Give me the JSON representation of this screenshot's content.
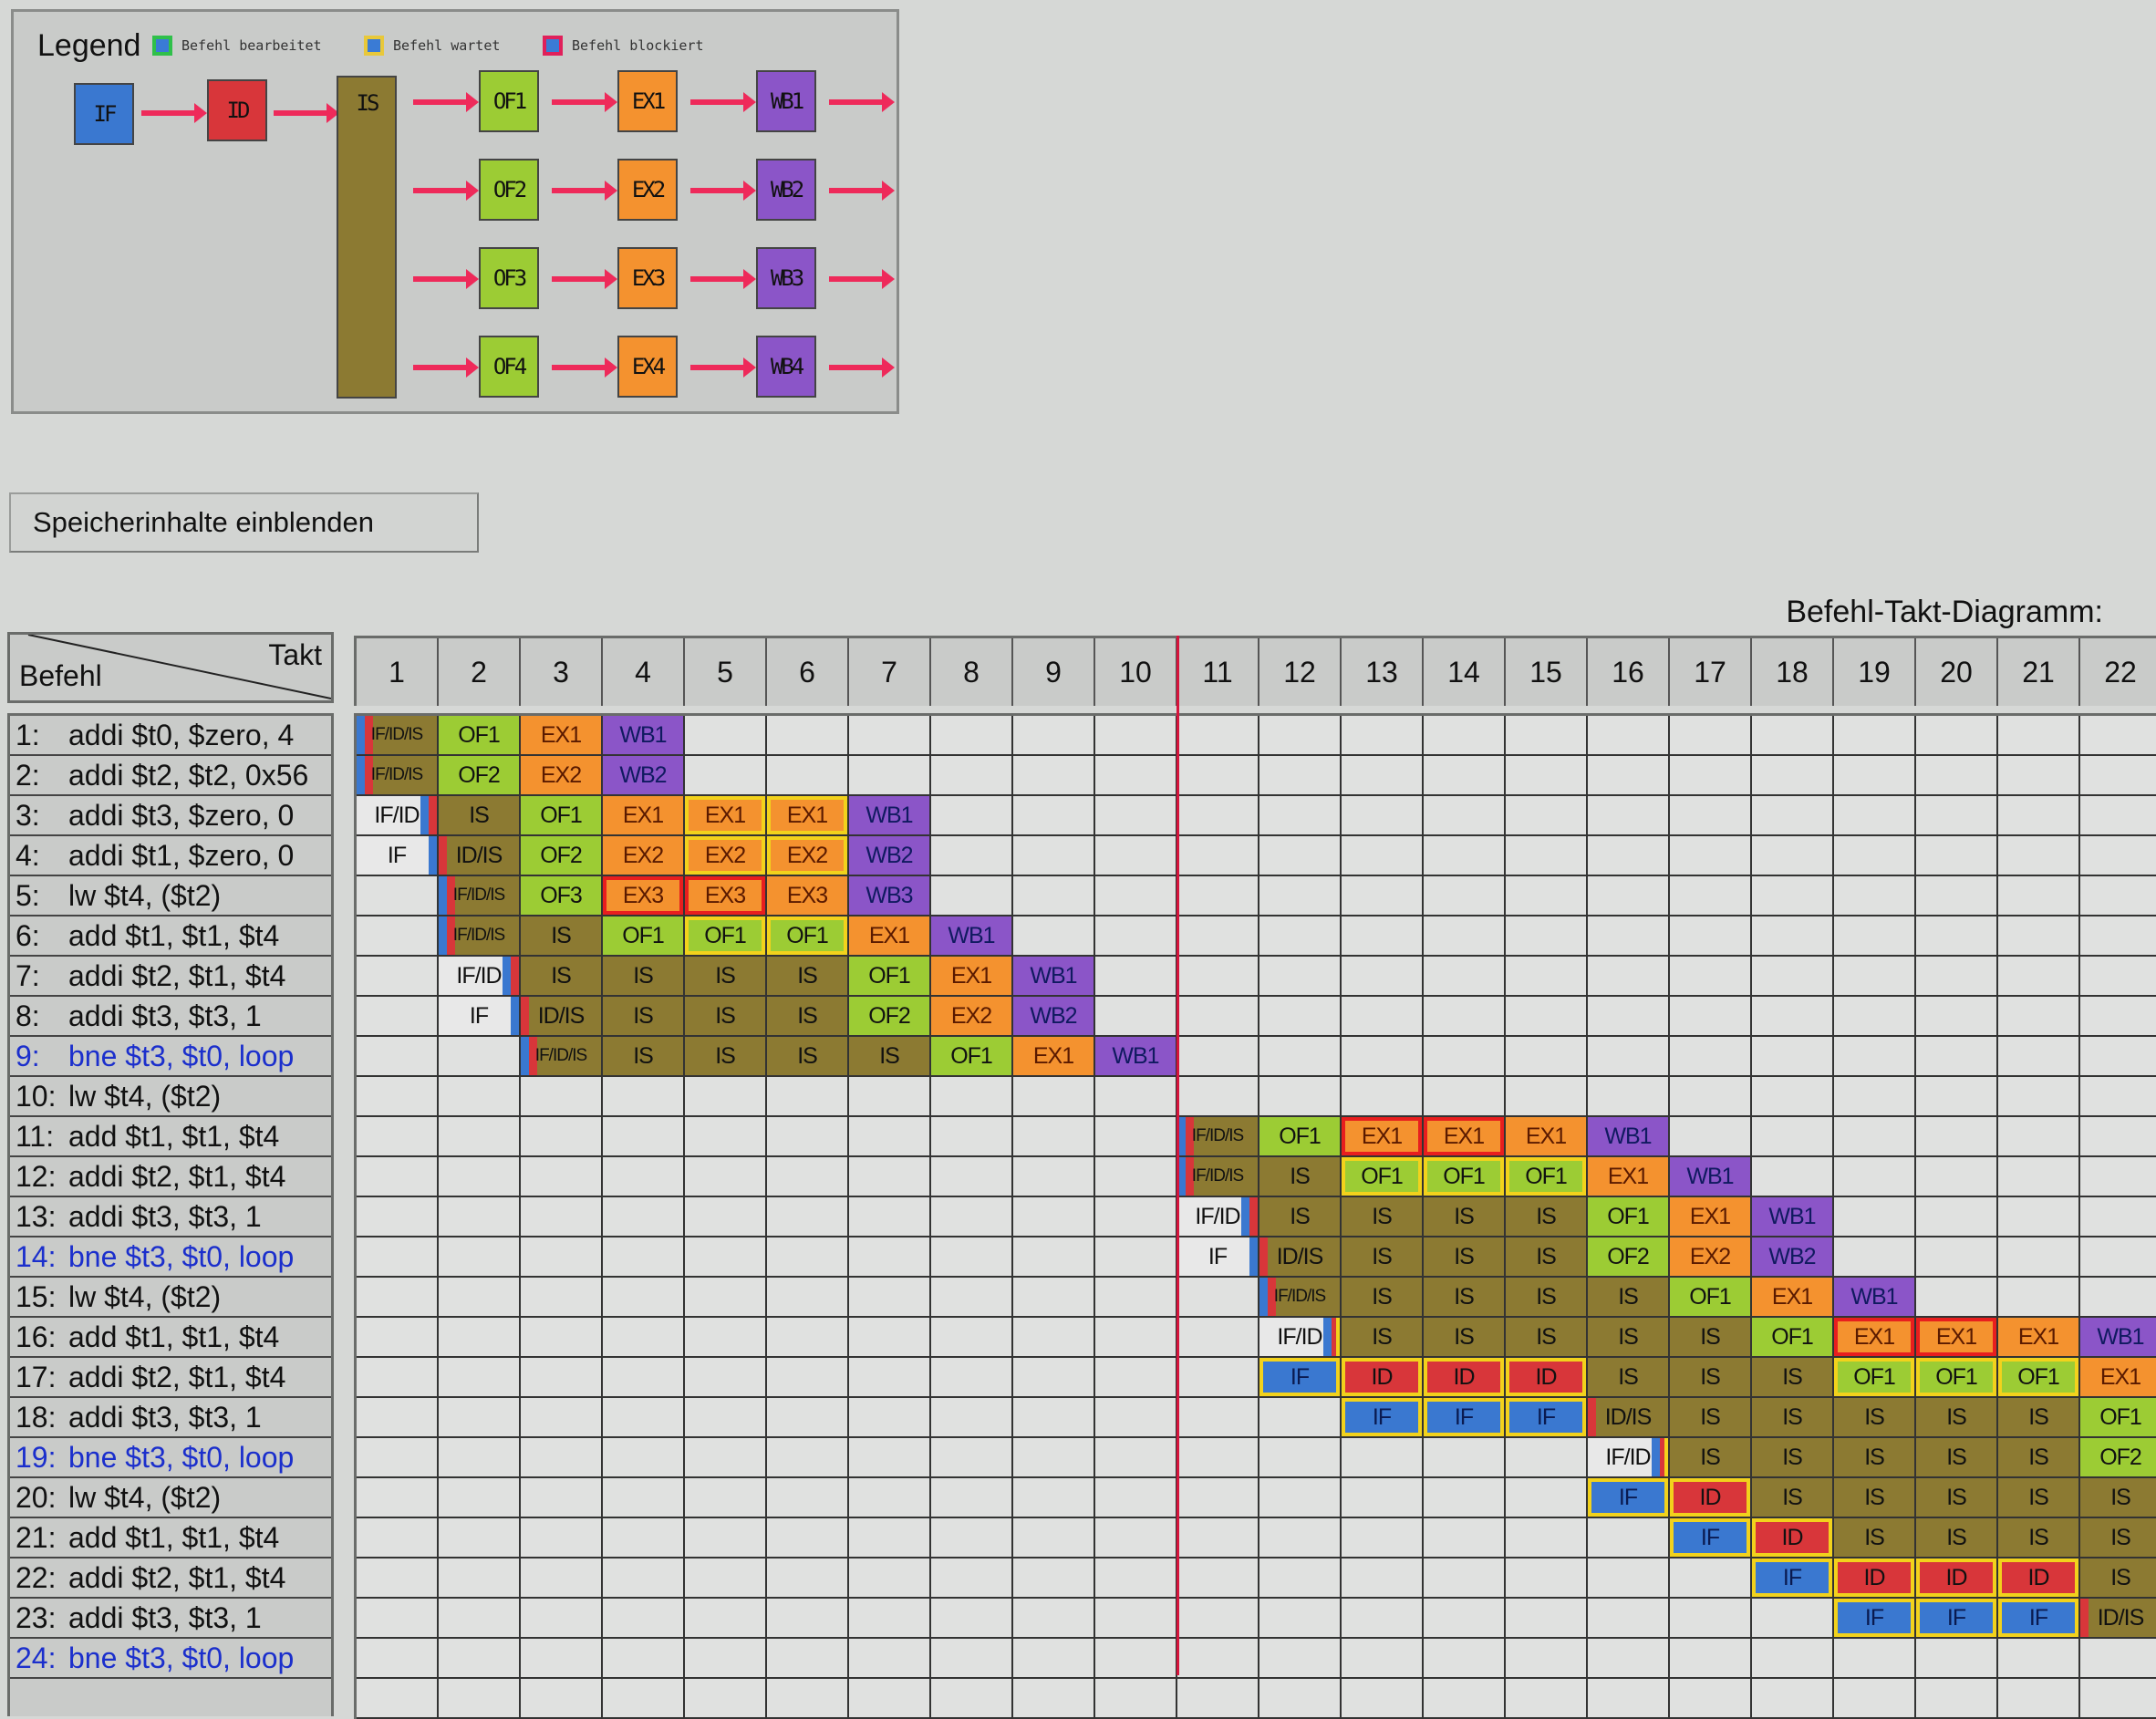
{
  "legend": {
    "title": "Legend",
    "items": [
      {
        "label": "Befehl bearbeitet",
        "border": "#2fc04a"
      },
      {
        "label": "Befehl wartet",
        "border": "#e8c83a"
      },
      {
        "label": "Befehl blockiert",
        "border": "#e0205a"
      }
    ],
    "pipeline": {
      "fetch": "IF",
      "decode": "ID",
      "issue": "IS",
      "operand_fetch": [
        "OF1",
        "OF2",
        "OF3",
        "OF4"
      ],
      "execute": [
        "EX1",
        "EX2",
        "EX3",
        "EX4"
      ],
      "write_back": [
        "WB1",
        "WB2",
        "WB3",
        "WB4"
      ]
    }
  },
  "colors": {
    "IF": "#3a78d0",
    "ID": "#d8363a",
    "IS": "#8c7a32",
    "OF": "#9ccc34",
    "EX": "#f4922f",
    "WB": "#8b55c8",
    "wait": "#f2d21c",
    "block": "#e81e1e",
    "marker": "#d6143c"
  },
  "memory_button": "Speicherinhalte einblenden",
  "diagram": {
    "title": "Befehl-Takt-Diagramm:",
    "row_header": "Befehl",
    "col_header": "Takt",
    "cycles": [
      "1",
      "2",
      "3",
      "4",
      "5",
      "6",
      "7",
      "8",
      "9",
      "10",
      "11",
      "12",
      "13",
      "14",
      "15",
      "16",
      "17",
      "18",
      "19",
      "20",
      "21",
      "22"
    ],
    "marker_after_cycle": 10,
    "rows": [
      {
        "n": "1:",
        "instr": "addi $t0, $zero, 4",
        "branch": false,
        "cells": [
          {
            "c": 1,
            "t": "IF/ID/IS"
          },
          {
            "c": 2,
            "t": "OF1"
          },
          {
            "c": 3,
            "t": "EX1"
          },
          {
            "c": 4,
            "t": "WB1"
          }
        ]
      },
      {
        "n": "2:",
        "instr": "addi $t2, $t2, 0x56",
        "branch": false,
        "cells": [
          {
            "c": 1,
            "t": "IF/ID/IS"
          },
          {
            "c": 2,
            "t": "OF2"
          },
          {
            "c": 3,
            "t": "EX2"
          },
          {
            "c": 4,
            "t": "WB2"
          }
        ]
      },
      {
        "n": "3:",
        "instr": "addi $t3, $zero, 0",
        "branch": false,
        "cells": [
          {
            "c": 1,
            "t": "IF/ID"
          },
          {
            "c": 2,
            "t": "IS"
          },
          {
            "c": 3,
            "t": "OF1"
          },
          {
            "c": 4,
            "t": "EX1"
          },
          {
            "c": 5,
            "t": "EX1",
            "s": "wait"
          },
          {
            "c": 6,
            "t": "EX1",
            "s": "wait"
          },
          {
            "c": 7,
            "t": "WB1"
          }
        ]
      },
      {
        "n": "4:",
        "instr": "addi $t1, $zero, 0",
        "branch": false,
        "cells": [
          {
            "c": 1,
            "t": "IF"
          },
          {
            "c": 2,
            "t": "ID/IS"
          },
          {
            "c": 3,
            "t": "OF2"
          },
          {
            "c": 4,
            "t": "EX2"
          },
          {
            "c": 5,
            "t": "EX2",
            "s": "wait"
          },
          {
            "c": 6,
            "t": "EX2",
            "s": "wait"
          },
          {
            "c": 7,
            "t": "WB2"
          }
        ]
      },
      {
        "n": "5:",
        "instr": "lw $t4, ($t2)",
        "branch": false,
        "cells": [
          {
            "c": 2,
            "t": "IF/ID/IS"
          },
          {
            "c": 3,
            "t": "OF3"
          },
          {
            "c": 4,
            "t": "EX3",
            "s": "block"
          },
          {
            "c": 5,
            "t": "EX3",
            "s": "block"
          },
          {
            "c": 6,
            "t": "EX3"
          },
          {
            "c": 7,
            "t": "WB3"
          }
        ]
      },
      {
        "n": "6:",
        "instr": "add $t1, $t1, $t4",
        "branch": false,
        "cells": [
          {
            "c": 2,
            "t": "IF/ID/IS"
          },
          {
            "c": 3,
            "t": "IS"
          },
          {
            "c": 4,
            "t": "OF1"
          },
          {
            "c": 5,
            "t": "OF1",
            "s": "wait"
          },
          {
            "c": 6,
            "t": "OF1",
            "s": "wait"
          },
          {
            "c": 7,
            "t": "EX1"
          },
          {
            "c": 8,
            "t": "WB1"
          }
        ]
      },
      {
        "n": "7:",
        "instr": "addi $t2, $t1, $t4",
        "branch": false,
        "cells": [
          {
            "c": 2,
            "t": "IF/ID"
          },
          {
            "c": 3,
            "t": "IS"
          },
          {
            "c": 4,
            "t": "IS"
          },
          {
            "c": 5,
            "t": "IS"
          },
          {
            "c": 6,
            "t": "IS"
          },
          {
            "c": 7,
            "t": "OF1"
          },
          {
            "c": 8,
            "t": "EX1"
          },
          {
            "c": 9,
            "t": "WB1"
          }
        ]
      },
      {
        "n": "8:",
        "instr": "addi $t3, $t3, 1",
        "branch": false,
        "cells": [
          {
            "c": 2,
            "t": "IF"
          },
          {
            "c": 3,
            "t": "ID/IS"
          },
          {
            "c": 4,
            "t": "IS"
          },
          {
            "c": 5,
            "t": "IS"
          },
          {
            "c": 6,
            "t": "IS"
          },
          {
            "c": 7,
            "t": "OF2"
          },
          {
            "c": 8,
            "t": "EX2"
          },
          {
            "c": 9,
            "t": "WB2"
          }
        ]
      },
      {
        "n": "9:",
        "instr": "bne $t3, $t0, loop",
        "branch": true,
        "cells": [
          {
            "c": 3,
            "t": "IF/ID/IS"
          },
          {
            "c": 4,
            "t": "IS"
          },
          {
            "c": 5,
            "t": "IS"
          },
          {
            "c": 6,
            "t": "IS"
          },
          {
            "c": 7,
            "t": "IS"
          },
          {
            "c": 8,
            "t": "OF1"
          },
          {
            "c": 9,
            "t": "EX1"
          },
          {
            "c": 10,
            "t": "WB1"
          }
        ]
      },
      {
        "n": "10:",
        "instr": "lw $t4, ($t2)",
        "branch": false,
        "cells": []
      },
      {
        "n": "11:",
        "instr": "add $t1, $t1, $t4",
        "branch": false,
        "cells": [
          {
            "c": 11,
            "t": "IF/ID/IS"
          },
          {
            "c": 12,
            "t": "OF1"
          },
          {
            "c": 13,
            "t": "EX1",
            "s": "block"
          },
          {
            "c": 14,
            "t": "EX1",
            "s": "block"
          },
          {
            "c": 15,
            "t": "EX1"
          },
          {
            "c": 16,
            "t": "WB1"
          }
        ]
      },
      {
        "n": "12:",
        "instr": "addi $t2, $t1, $t4",
        "branch": false,
        "cells": [
          {
            "c": 11,
            "t": "IF/ID/IS"
          },
          {
            "c": 12,
            "t": "IS"
          },
          {
            "c": 13,
            "t": "OF1",
            "s": "wait"
          },
          {
            "c": 14,
            "t": "OF1",
            "s": "wait"
          },
          {
            "c": 15,
            "t": "OF1",
            "s": "wait"
          },
          {
            "c": 16,
            "t": "EX1"
          },
          {
            "c": 17,
            "t": "WB1"
          }
        ]
      },
      {
        "n": "13:",
        "instr": "addi $t3, $t3, 1",
        "branch": false,
        "cells": [
          {
            "c": 11,
            "t": "IF/ID"
          },
          {
            "c": 12,
            "t": "IS"
          },
          {
            "c": 13,
            "t": "IS"
          },
          {
            "c": 14,
            "t": "IS"
          },
          {
            "c": 15,
            "t": "IS"
          },
          {
            "c": 16,
            "t": "OF1"
          },
          {
            "c": 17,
            "t": "EX1"
          },
          {
            "c": 18,
            "t": "WB1"
          }
        ]
      },
      {
        "n": "14:",
        "instr": "bne $t3, $t0, loop",
        "branch": true,
        "cells": [
          {
            "c": 11,
            "t": "IF"
          },
          {
            "c": 12,
            "t": "ID/IS"
          },
          {
            "c": 13,
            "t": "IS"
          },
          {
            "c": 14,
            "t": "IS"
          },
          {
            "c": 15,
            "t": "IS"
          },
          {
            "c": 16,
            "t": "OF2"
          },
          {
            "c": 17,
            "t": "EX2"
          },
          {
            "c": 18,
            "t": "WB2"
          }
        ]
      },
      {
        "n": "15:",
        "instr": "lw $t4, ($t2)",
        "branch": false,
        "cells": [
          {
            "c": 12,
            "t": "IF/ID/IS"
          },
          {
            "c": 13,
            "t": "IS"
          },
          {
            "c": 14,
            "t": "IS"
          },
          {
            "c": 15,
            "t": "IS"
          },
          {
            "c": 16,
            "t": "IS"
          },
          {
            "c": 17,
            "t": "OF1"
          },
          {
            "c": 18,
            "t": "EX1"
          },
          {
            "c": 19,
            "t": "WB1"
          }
        ]
      },
      {
        "n": "16:",
        "instr": "add $t1, $t1, $t4",
        "branch": false,
        "cells": [
          {
            "c": 12,
            "t": "IF/ID",
            "s": "wait"
          },
          {
            "c": 13,
            "t": "IS"
          },
          {
            "c": 14,
            "t": "IS"
          },
          {
            "c": 15,
            "t": "IS"
          },
          {
            "c": 16,
            "t": "IS"
          },
          {
            "c": 17,
            "t": "IS"
          },
          {
            "c": 18,
            "t": "OF1"
          },
          {
            "c": 19,
            "t": "EX1",
            "s": "block"
          },
          {
            "c": 20,
            "t": "EX1",
            "s": "block"
          },
          {
            "c": 21,
            "t": "EX1"
          },
          {
            "c": 22,
            "t": "WB1"
          }
        ]
      },
      {
        "n": "17:",
        "instr": "addi $t2, $t1, $t4",
        "branch": false,
        "cells": [
          {
            "c": 12,
            "t": "IF",
            "s": "wait"
          },
          {
            "c": 13,
            "t": "ID",
            "s": "wait"
          },
          {
            "c": 14,
            "t": "ID",
            "s": "wait"
          },
          {
            "c": 15,
            "t": "ID",
            "s": "wait"
          },
          {
            "c": 16,
            "t": "IS"
          },
          {
            "c": 17,
            "t": "IS"
          },
          {
            "c": 18,
            "t": "IS"
          },
          {
            "c": 19,
            "t": "OF1",
            "s": "wait"
          },
          {
            "c": 20,
            "t": "OF1",
            "s": "wait"
          },
          {
            "c": 21,
            "t": "OF1",
            "s": "wait"
          },
          {
            "c": 22,
            "t": "EX1"
          }
        ]
      },
      {
        "n": "18:",
        "instr": "addi $t3, $t3, 1",
        "branch": false,
        "cells": [
          {
            "c": 13,
            "t": "IF",
            "s": "wait"
          },
          {
            "c": 14,
            "t": "IF",
            "s": "wait"
          },
          {
            "c": 15,
            "t": "IF",
            "s": "wait"
          },
          {
            "c": 16,
            "t": "ID/IS"
          },
          {
            "c": 17,
            "t": "IS"
          },
          {
            "c": 18,
            "t": "IS"
          },
          {
            "c": 19,
            "t": "IS"
          },
          {
            "c": 20,
            "t": "IS"
          },
          {
            "c": 21,
            "t": "IS"
          },
          {
            "c": 22,
            "t": "OF1"
          }
        ]
      },
      {
        "n": "19:",
        "instr": "bne $t3, $t0, loop",
        "branch": true,
        "cells": [
          {
            "c": 16,
            "t": "IF/ID",
            "s": "wait"
          },
          {
            "c": 17,
            "t": "IS"
          },
          {
            "c": 18,
            "t": "IS"
          },
          {
            "c": 19,
            "t": "IS"
          },
          {
            "c": 20,
            "t": "IS"
          },
          {
            "c": 21,
            "t": "IS"
          },
          {
            "c": 22,
            "t": "OF2"
          }
        ]
      },
      {
        "n": "20:",
        "instr": "lw $t4, ($t2)",
        "branch": false,
        "cells": [
          {
            "c": 16,
            "t": "IF",
            "s": "wait"
          },
          {
            "c": 17,
            "t": "ID",
            "s": "wait"
          },
          {
            "c": 18,
            "t": "IS"
          },
          {
            "c": 19,
            "t": "IS"
          },
          {
            "c": 20,
            "t": "IS"
          },
          {
            "c": 21,
            "t": "IS"
          },
          {
            "c": 22,
            "t": "IS"
          }
        ]
      },
      {
        "n": "21:",
        "instr": "add $t1, $t1, $t4",
        "branch": false,
        "cells": [
          {
            "c": 17,
            "t": "IF",
            "s": "wait"
          },
          {
            "c": 18,
            "t": "ID",
            "s": "wait"
          },
          {
            "c": 19,
            "t": "IS"
          },
          {
            "c": 20,
            "t": "IS"
          },
          {
            "c": 21,
            "t": "IS"
          },
          {
            "c": 22,
            "t": "IS"
          }
        ]
      },
      {
        "n": "22:",
        "instr": "addi $t2, $t1, $t4",
        "branch": false,
        "cells": [
          {
            "c": 18,
            "t": "IF",
            "s": "wait"
          },
          {
            "c": 19,
            "t": "ID",
            "s": "wait"
          },
          {
            "c": 20,
            "t": "ID",
            "s": "wait"
          },
          {
            "c": 21,
            "t": "ID",
            "s": "wait"
          },
          {
            "c": 22,
            "t": "IS"
          }
        ]
      },
      {
        "n": "23:",
        "instr": "addi $t3, $t3, 1",
        "branch": false,
        "cells": [
          {
            "c": 19,
            "t": "IF",
            "s": "wait"
          },
          {
            "c": 20,
            "t": "IF",
            "s": "wait"
          },
          {
            "c": 21,
            "t": "IF",
            "s": "wait"
          },
          {
            "c": 22,
            "t": "ID/IS"
          }
        ]
      },
      {
        "n": "24:",
        "instr": "bne $t3, $t0, loop",
        "branch": true,
        "cells": []
      }
    ]
  }
}
